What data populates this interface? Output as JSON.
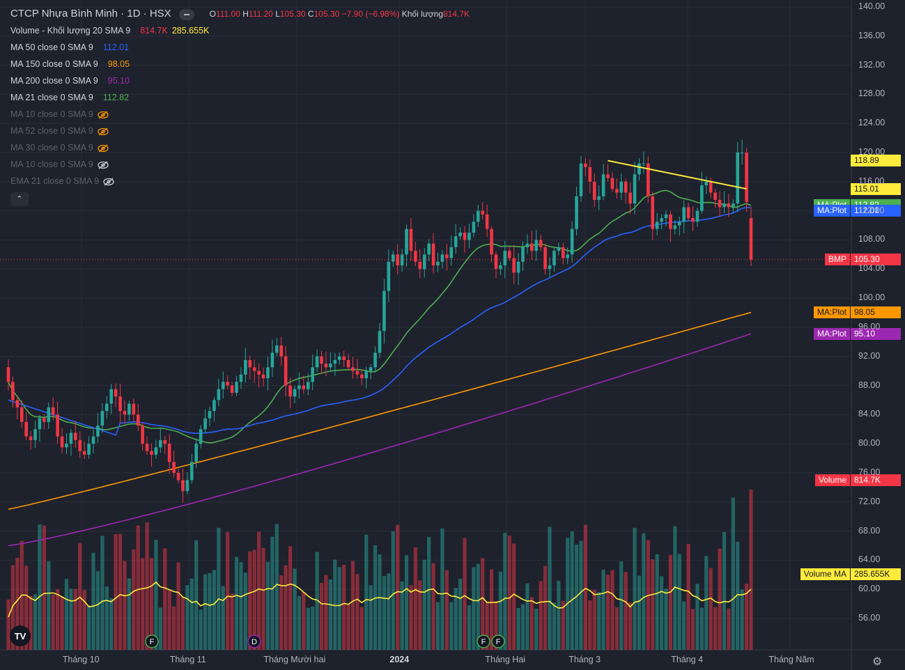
{
  "header": {
    "title": "CTCP Nhựa Bình Minh · 1D · HSX",
    "ohlc": {
      "o_label": "O",
      "o": "111.00",
      "h_label": "H",
      "h": "111.20",
      "l_label": "L",
      "l": "105.30",
      "c_label": "C",
      "c": "105.30",
      "chg": "−7.90 (−6.98%)",
      "vol_label": "Khối lượng",
      "vol": "814.7K"
    }
  },
  "indicators": [
    {
      "label": "Volume - Khối lượng 20 SMA 9",
      "value": "814.7K",
      "value2": "285.655K",
      "color": "#f23645",
      "color2": "#ffeb3b",
      "hidden": false
    },
    {
      "label": "MA 50 close 0 SMA 9",
      "value": "112.01",
      "color": "#2962ff",
      "hidden": false
    },
    {
      "label": "MA 150 close 0 SMA 9",
      "value": "98.05",
      "color": "#ff9800",
      "hidden": false
    },
    {
      "label": "MA 200 close 0 SMA 9",
      "value": "95.10",
      "color": "#9c27b0",
      "hidden": false
    },
    {
      "label": "MA 21 close 0 SMA 9",
      "value": "112.82",
      "color": "#4caf50",
      "hidden": false
    },
    {
      "label": "MA 10 close 0 SMA 9",
      "value": "",
      "color": "#ff9800",
      "hidden": true
    },
    {
      "label": "MA 52 close 0 SMA 9",
      "value": "",
      "color": "#ff9800",
      "hidden": true
    },
    {
      "label": "MA 30 close 0 SMA 9",
      "value": "",
      "color": "#ff9800",
      "hidden": true
    },
    {
      "label": "MA 10 close 0 SMA 9",
      "value": "",
      "color": "#d1d4dc",
      "hidden": true
    },
    {
      "label": "EMA 21 close 0 SMA 9",
      "value": "",
      "color": "#d1d4dc",
      "hidden": true
    }
  ],
  "price_tags": [
    {
      "name": "trendline-tag-high",
      "label": "",
      "value": "118.89",
      "bg": "#ffeb3b",
      "fg": "#131722",
      "price": 118.89
    },
    {
      "name": "trendline-tag-low",
      "label": "",
      "value": "115.01",
      "bg": "#ffeb3b",
      "fg": "#131722",
      "price": 115.01
    },
    {
      "name": "ma21-tag",
      "label": "MA:Plot",
      "value": "112.82",
      "bg": "#4caf50",
      "fg": "#ffffff",
      "price": 112.82
    },
    {
      "name": "ma50-tag",
      "label": "MA:Plot",
      "value": "112.01",
      "bg": "#2962ff",
      "fg": "#ffffff",
      "price": 112.01
    },
    {
      "name": "last-price-tag",
      "label": "BMP",
      "value": "105.30",
      "bg": "#f23645",
      "fg": "#ffffff",
      "price": 105.3
    },
    {
      "name": "ma150-tag",
      "label": "MA:Plot",
      "value": "98.05",
      "bg": "#ff9800",
      "fg": "#131722",
      "price": 98.05
    },
    {
      "name": "ma200-tag",
      "label": "MA:Plot",
      "value": "95.10",
      "bg": "#9c27b0",
      "fg": "#ffffff",
      "price": 95.1
    },
    {
      "name": "volume-tag",
      "label": "Volume",
      "value": "814.7K",
      "bg": "#f23645",
      "fg": "#ffffff",
      "price": 75.0
    },
    {
      "name": "volume-ma-tag",
      "label": "Volume MA",
      "value": "285.655K",
      "bg": "#ffeb3b",
      "fg": "#131722",
      "price": 62.1
    }
  ],
  "colors": {
    "up": "#26a69a",
    "down": "#f23645",
    "ma21": "#4caf50",
    "ma50": "#2962ff",
    "ma150": "#ff9800",
    "ma200": "#9c27b0",
    "trendline": "#ffeb3b",
    "volma": "#ffeb3b"
  },
  "events": [
    {
      "label": "F",
      "color": "#4caf50",
      "at": "Tháng 11"
    },
    {
      "label": "D",
      "color": "#9c27b0",
      "at": "Tháng Mười hai"
    },
    {
      "label": "F",
      "color": "#4caf50",
      "at": "Tháng Hai"
    },
    {
      "label": "F",
      "color": "#4caf50",
      "at": "Tháng Hai"
    }
  ],
  "logo_text": "TV",
  "chart_data": {
    "type": "candlestick",
    "y_ticks": [
      "56.00",
      "60.00",
      "64.00",
      "68.00",
      "72.00",
      "76.00",
      "80.00",
      "84.00",
      "88.00",
      "92.00",
      "96.00",
      "100.00",
      "104.00",
      "108.00",
      "112.00",
      "116.00",
      "120.00",
      "124.00",
      "128.00",
      "132.00",
      "136.00",
      "140.00"
    ],
    "ylim": [
      53,
      141
    ],
    "x_ticks": [
      "Tháng 10",
      "Tháng 11",
      "Tháng Mười hai",
      "2024",
      "Tháng Hai",
      "Tháng 3",
      "Tháng 4",
      "Tháng Năm"
    ],
    "closes": [
      88.5,
      86,
      85,
      83,
      81,
      80.5,
      82,
      83.5,
      83,
      85,
      84,
      81,
      79.5,
      80,
      81.5,
      80.5,
      79,
      78.5,
      80,
      81,
      82.5,
      84.5,
      85.5,
      87.5,
      86.5,
      84.5,
      84,
      85.5,
      84,
      82.5,
      80,
      79,
      78.5,
      79.5,
      80.5,
      80,
      77.5,
      76,
      75,
      73.5,
      75,
      77.5,
      80,
      82,
      83.5,
      84.5,
      86,
      87.5,
      88.5,
      88,
      87,
      88.5,
      89.5,
      91.5,
      90.5,
      90,
      89.5,
      89,
      90.5,
      92.5,
      93.5,
      92,
      88,
      86.5,
      87.5,
      88,
      87.5,
      88.5,
      90.5,
      92,
      91,
      90.5,
      91,
      91.5,
      92,
      91.5,
      90.5,
      90,
      89.5,
      89,
      90,
      90.5,
      92.5,
      95.5,
      101,
      105,
      106,
      104.5,
      106,
      109.5,
      106.5,
      105,
      104,
      106,
      107.5,
      104.5,
      105,
      106,
      105.5,
      107,
      108.5,
      109,
      108,
      109,
      110.5,
      112,
      111.5,
      109.5,
      106,
      104,
      104.5,
      106.5,
      105.5,
      103.5,
      105,
      107,
      107.5,
      106.5,
      108,
      107,
      104,
      104.5,
      106.5,
      107,
      105.5,
      106,
      109.5,
      114,
      118.5,
      118,
      116,
      113.5,
      114,
      117,
      116.5,
      115,
      114.5,
      116,
      114.5,
      113,
      117,
      118.5,
      118.5,
      114,
      109.5,
      110.5,
      111,
      111.5,
      109.5,
      110,
      110.5,
      112.5,
      111,
      110.5,
      112,
      115.5,
      116,
      114.5,
      113.5,
      112.5,
      113,
      112.5,
      113,
      120,
      120,
      113.2,
      105.3
    ],
    "opens": [
      90.5,
      88.5,
      86,
      85,
      83,
      81,
      80.5,
      82,
      83.5,
      83,
      85,
      84,
      81,
      79.5,
      80,
      81.5,
      80.5,
      79,
      78.5,
      80,
      81,
      82.5,
      84.5,
      85.5,
      87.5,
      86.5,
      84.5,
      84,
      85.5,
      84,
      82.5,
      80,
      79,
      78.5,
      79.5,
      80.5,
      80,
      77.5,
      76,
      75,
      73.5,
      75,
      77.5,
      80,
      82,
      83.5,
      84.5,
      86,
      87.5,
      88.5,
      88,
      87,
      88.5,
      89.5,
      91.5,
      90.5,
      90,
      89.5,
      89,
      90.5,
      92.5,
      93.5,
      92,
      88,
      86.5,
      87.5,
      88,
      87.5,
      88.5,
      90.5,
      92,
      91,
      90.5,
      91,
      91.5,
      92,
      91.5,
      90.5,
      90,
      89.5,
      89,
      90,
      90.5,
      92.5,
      95.5,
      101,
      105,
      106,
      104.5,
      106,
      109.5,
      106.5,
      105,
      104,
      106,
      107.5,
      104.5,
      105,
      106,
      105.5,
      107,
      108.5,
      109,
      108,
      109,
      110.5,
      112,
      111.5,
      109.5,
      106,
      104,
      104.5,
      106.5,
      105.5,
      103.5,
      105,
      107,
      107.5,
      106.5,
      108,
      107,
      104,
      104.5,
      106.5,
      107,
      105.5,
      106,
      109.5,
      114,
      118.5,
      118,
      116,
      113.5,
      114,
      117,
      116.5,
      115,
      114.5,
      116,
      114.5,
      113,
      117,
      118.5,
      118.5,
      114,
      109.5,
      110.5,
      111,
      111.5,
      109.5,
      110,
      110.5,
      112.5,
      111,
      110.5,
      112,
      115.5,
      116,
      114.5,
      113.5,
      112.5,
      113,
      112.5,
      113,
      120,
      120,
      111
    ],
    "volume_ma_last": "285.655K",
    "volume_last": "814.7K",
    "ma21_last": 112.82,
    "ma50_last": 112.01,
    "ma150_last": 98.05,
    "ma200_last": 95.1,
    "trendline": {
      "from_price": 118.89,
      "to_price": 115.01
    }
  }
}
